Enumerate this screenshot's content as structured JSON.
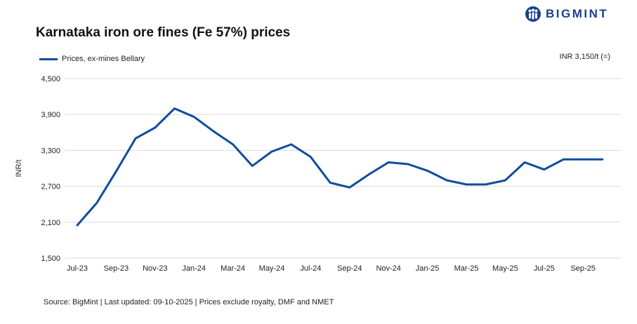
{
  "header": {
    "title": "Karnataka iron ore fines (Fe 57%) prices",
    "logo_text": "BIGMINT"
  },
  "readout": "INR 3,150/t (=)",
  "footer": {
    "source": "Source: BigMint | Last updated: 09-10-2025 | Prices exclude royalty, DMF and NMET"
  },
  "colors": {
    "series": "#0f4c9e",
    "grid": "#d9d9d9",
    "brand": "#1a3f8f"
  },
  "chart_data": {
    "type": "line",
    "title": "Karnataka iron ore fines (Fe 57%) prices",
    "xlabel": "",
    "ylabel": "INR/t",
    "ylim": [
      1500,
      4500
    ],
    "yticks": [
      1500,
      2100,
      2700,
      3300,
      3900,
      4500
    ],
    "ytick_labels": [
      "1,500",
      "2,100",
      "2,700",
      "3,300",
      "3,900",
      "4,500"
    ],
    "grid": true,
    "legend_position": "top-left",
    "x_tick_labels": [
      "Jul-23",
      "Sep-23",
      "Nov-23",
      "Jan-24",
      "Mar-24",
      "May-24",
      "Jul-24",
      "Sep-24",
      "Nov-24",
      "Jan-25",
      "Mar-25",
      "May-25",
      "Jul-25",
      "Sep-25"
    ],
    "x": [
      "Jul-23",
      "Aug-23",
      "Sep-23",
      "Oct-23",
      "Nov-23",
      "Dec-23",
      "Jan-24",
      "Feb-24",
      "Mar-24",
      "Apr-24",
      "May-24",
      "Jun-24",
      "Jul-24",
      "Aug-24",
      "Sep-24",
      "Oct-24",
      "Nov-24",
      "Dec-24",
      "Jan-25",
      "Feb-25",
      "Mar-25",
      "Apr-25",
      "May-25",
      "Jun-25",
      "Jul-25",
      "Aug-25",
      "Sep-25",
      "Oct-25"
    ],
    "series": [
      {
        "name": "Prices, ex-mines Bellary",
        "color": "#0f4c9e",
        "values": [
          2050,
          2420,
          2950,
          3500,
          3680,
          4000,
          3860,
          3620,
          3400,
          3040,
          3280,
          3400,
          3190,
          2760,
          2680,
          2900,
          3100,
          3070,
          2960,
          2800,
          2730,
          2730,
          2800,
          3100,
          2980,
          3150,
          3150,
          3150
        ]
      }
    ]
  }
}
